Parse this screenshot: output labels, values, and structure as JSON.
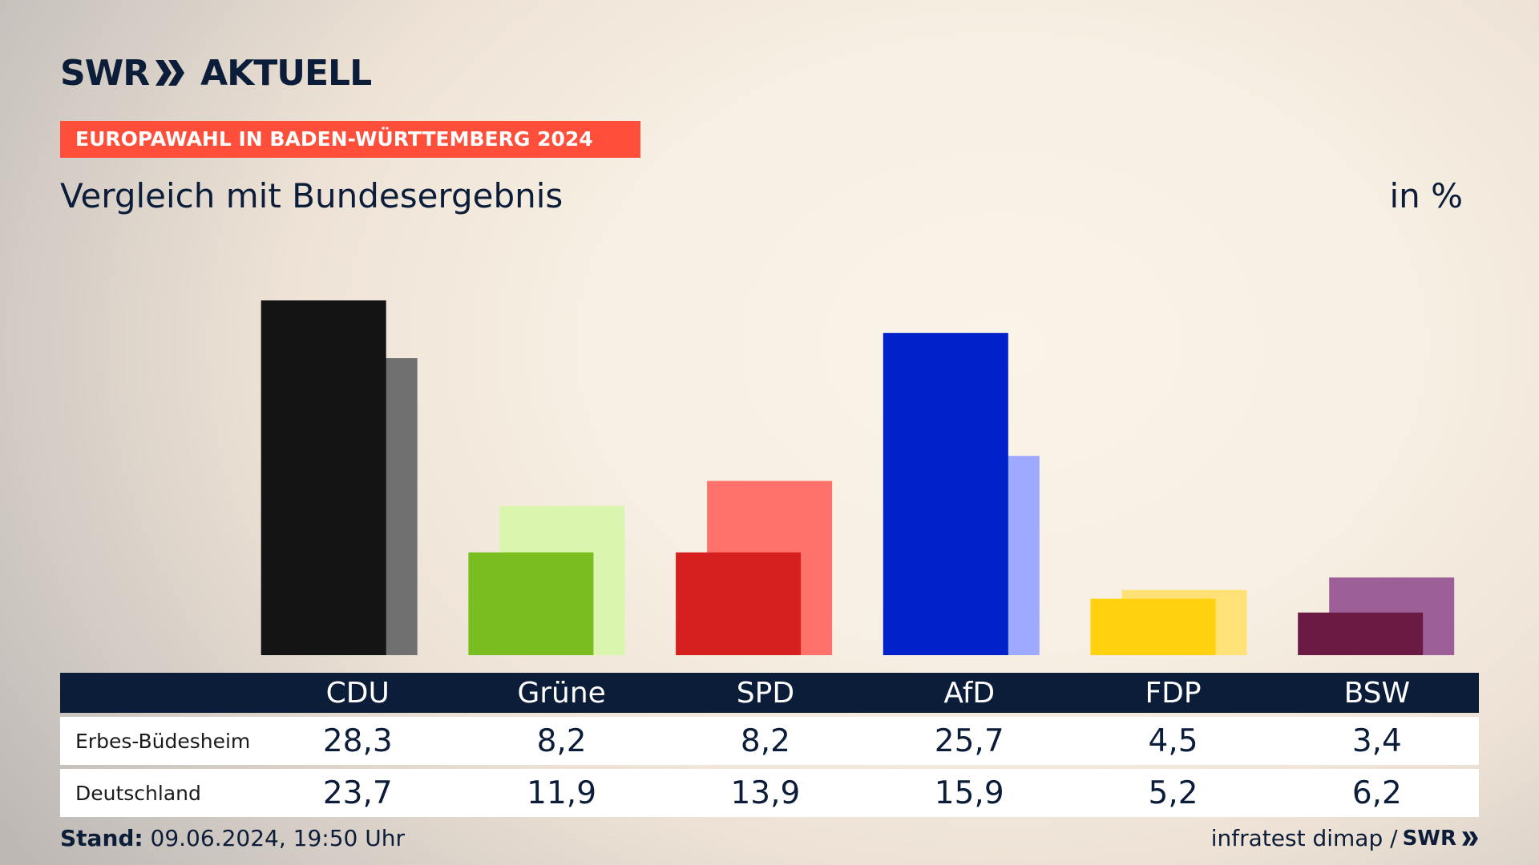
{
  "header": {
    "logo_text": "SWR",
    "logo_suffix": "AKTUELL",
    "banner": "EUROPAWAHL IN BADEN-WÜRTTEMBERG 2024",
    "subtitle": "Vergleich mit Bundesergebnis",
    "unit": "in %"
  },
  "chart_data": {
    "type": "bar",
    "categories": [
      "CDU",
      "Grüne",
      "SPD",
      "AfD",
      "FDP",
      "BSW"
    ],
    "series": [
      {
        "name": "Erbes-Büdesheim",
        "values": [
          28.3,
          8.2,
          8.2,
          25.7,
          4.5,
          3.4
        ]
      },
      {
        "name": "Deutschland",
        "values": [
          23.7,
          11.9,
          13.9,
          15.9,
          5.2,
          6.2
        ]
      }
    ],
    "colors": {
      "primary": [
        "#141414",
        "#79be1e",
        "#d61f1f",
        "#0021c9",
        "#ffd10f",
        "#6a1a43"
      ],
      "secondary": [
        "#707070",
        "#d9f5ae",
        "#ff726b",
        "#9eaaff",
        "#ffe175",
        "#9d5f98"
      ]
    },
    "ylim": [
      0,
      30
    ],
    "grid": false
  },
  "table": {
    "headers": [
      "CDU",
      "Grüne",
      "SPD",
      "AfD",
      "FDP",
      "BSW"
    ],
    "rows": [
      {
        "label": "Erbes-Büdesheim",
        "values": [
          "28,3",
          "8,2",
          "8,2",
          "25,7",
          "4,5",
          "3,4"
        ]
      },
      {
        "label": "Deutschland",
        "values": [
          "23,7",
          "11,9",
          "13,9",
          "15,9",
          "5,2",
          "6,2"
        ]
      }
    ]
  },
  "footer": {
    "stand_label": "Stand:",
    "stand_value": "09.06.2024, 19:50 Uhr",
    "source": "infratest dimap /",
    "source_logo": "SWR"
  }
}
